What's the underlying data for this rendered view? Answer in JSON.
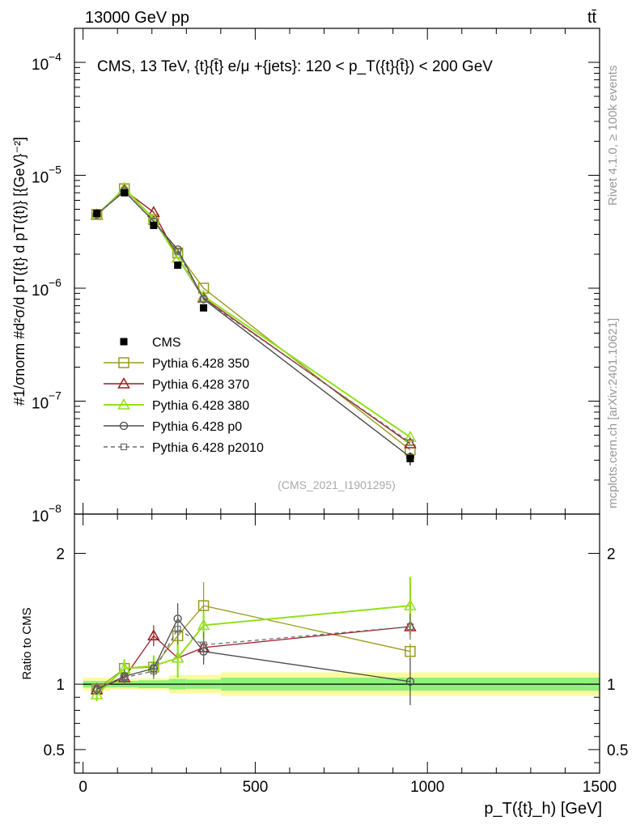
{
  "header": {
    "collision": "13000 GeV pp",
    "process": "tt̄"
  },
  "side_labels": {
    "rivet": "Rivet 4.1.0, ≥ 100k events",
    "mcplots": "mcplots.cern.ch [arXiv:2401.10621]"
  },
  "colors": {
    "cms": "#000000",
    "p350": "#9a9a1e",
    "p370": "#9b1b22",
    "p380": "#92e01c",
    "p0": "#4a4a4a",
    "p2010": "#6e6e6e",
    "band_inner": "#8ff07e",
    "band_outer": "#fbfb9e"
  },
  "chart_data": [
    {
      "type": "line",
      "name": "main-panel",
      "title": "CMS, 13 TeV, {t}{t̄} e/μ +{jets}: 120 <  p_T({t}{t̄}) < 200 GeV",
      "watermark": "(CMS_2021_I1901295)",
      "ylabel": "#1/σnorm #d²σ/d pT({t} d pT({t)} [{GeV}⁻²]",
      "yscale": "log",
      "ylim": [
        1e-08,
        0.0002
      ],
      "xlim": [
        -25,
        1500
      ],
      "ytick_labels": [
        {
          "value": 1e-08,
          "base": "10",
          "exp": "−8"
        },
        {
          "value": 1e-07,
          "base": "10",
          "exp": "−7"
        },
        {
          "value": 1e-06,
          "base": "10",
          "exp": "−6"
        },
        {
          "value": 1e-05,
          "base": "10",
          "exp": "−5"
        },
        {
          "value": 0.0001,
          "base": "10",
          "exp": "−4"
        }
      ],
      "x": [
        40,
        120,
        205,
        275,
        350,
        950
      ],
      "series": [
        {
          "name": "CMS",
          "key": "cms",
          "marker": "square-filled",
          "values": [
            4.6e-06,
            7e-06,
            3.6e-06,
            1.6e-06,
            6.7e-07,
            3.1e-08
          ],
          "err": [
            2.5e-07,
            3e-07,
            2e-07,
            8e-08,
            4e-08,
            4e-09
          ]
        },
        {
          "name": "Pythia 6.428 350",
          "key": "p350",
          "marker": "square-open",
          "values": [
            4.5e-06,
            7.6e-06,
            4.05e-06,
            2.05e-06,
            1e-06,
            3.7e-08
          ]
        },
        {
          "name": "Pythia 6.428 370",
          "key": "p370",
          "marker": "triangle-open",
          "values": [
            4.45e-06,
            7.4e-06,
            4.7e-06,
            1.85e-06,
            8.2e-07,
            4.2e-08
          ]
        },
        {
          "name": "Pythia 6.428 380",
          "key": "p380",
          "marker": "triangle-open",
          "values": [
            4.4e-06,
            7.7e-06,
            4.1e-06,
            1.85e-06,
            8.5e-07,
            4.8e-08
          ]
        },
        {
          "name": "Pythia 6.428 p0",
          "key": "p0",
          "marker": "circle-open",
          "values": [
            4.5e-06,
            7.2e-06,
            3.9e-06,
            2.2e-06,
            8e-07,
            3.2e-08
          ]
        },
        {
          "name": "Pythia 6.428 p2010",
          "key": "p2010",
          "marker": "square-open-small",
          "dashed": true,
          "values": [
            4.5e-06,
            7.3e-06,
            3.9e-06,
            2.1e-06,
            8e-07,
            4.3e-08
          ]
        }
      ]
    },
    {
      "type": "line",
      "name": "ratio-panel",
      "ylabel": "Ratio to CMS",
      "xlabel": "p_T({t}_h) [GeV]",
      "ylim": [
        0.32,
        2.3
      ],
      "xlim": [
        -25,
        1500
      ],
      "ytick_labels": [
        {
          "value": 0.5,
          "label": "0.5"
        },
        {
          "value": 1,
          "label": "1"
        },
        {
          "value": 2,
          "label": "2"
        }
      ],
      "xtick_labels": [
        {
          "value": 0,
          "label": "0"
        },
        {
          "value": 500,
          "label": "500"
        },
        {
          "value": 1000,
          "label": "1000"
        },
        {
          "value": 1500,
          "label": "1500"
        }
      ],
      "x": [
        40,
        120,
        205,
        275,
        350,
        950
      ],
      "bins": [
        {
          "lo": 0,
          "hi": 80,
          "inner": 0.025,
          "outer": 0.05
        },
        {
          "lo": 80,
          "hi": 160,
          "inner": 0.025,
          "outer": 0.04
        },
        {
          "lo": 160,
          "hi": 250,
          "inner": 0.03,
          "outer": 0.045
        },
        {
          "lo": 250,
          "hi": 300,
          "inner": 0.04,
          "outer": 0.07
        },
        {
          "lo": 300,
          "hi": 400,
          "inner": 0.035,
          "outer": 0.07
        },
        {
          "lo": 400,
          "hi": 1500,
          "inner": 0.05,
          "outer": 0.09
        }
      ],
      "series": [
        {
          "key": "p350",
          "marker": "square-open",
          "values": [
            0.96,
            1.12,
            1.13,
            1.37,
            1.6,
            1.25
          ],
          "err": [
            0.04,
            0.06,
            0.08,
            0.12,
            0.18,
            0.06
          ]
        },
        {
          "key": "p370",
          "marker": "triangle-open",
          "values": [
            0.96,
            1.05,
            1.37,
            1.2,
            1.28,
            1.44
          ],
          "err": [
            0.04,
            0.05,
            0.08,
            0.08,
            0.1,
            0.06
          ]
        },
        {
          "key": "p380",
          "marker": "triangle-open",
          "values": [
            0.92,
            1.12,
            1.14,
            1.2,
            1.45,
            1.6
          ],
          "err": [
            0.05,
            0.07,
            0.08,
            0.15,
            0.1,
            0.22
          ]
        },
        {
          "key": "p0",
          "marker": "circle-open",
          "values": [
            0.96,
            1.06,
            1.12,
            1.5,
            1.25,
            1.02
          ],
          "err": [
            0.04,
            0.05,
            0.05,
            0.12,
            0.1,
            0.18
          ]
        },
        {
          "key": "p2010",
          "marker": "square-open-small",
          "dashed": true,
          "values": [
            0.97,
            1.05,
            1.1,
            1.42,
            1.3,
            1.44
          ],
          "err": [
            0.04,
            0.05,
            0.06,
            0.12,
            0.1,
            0.1
          ]
        }
      ]
    }
  ]
}
